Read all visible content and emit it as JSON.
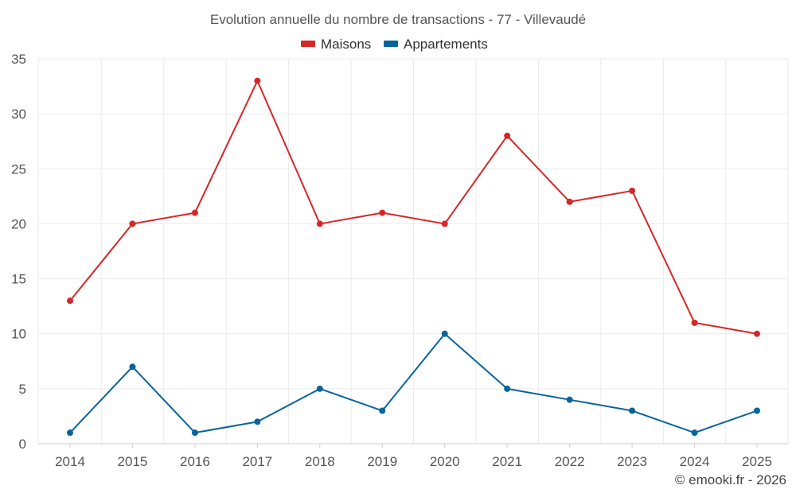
{
  "chart_data": {
    "type": "line",
    "title": "Evolution annuelle du nombre de transactions - 77 - Villevaudé",
    "categories": [
      "2014",
      "2015",
      "2016",
      "2017",
      "2018",
      "2019",
      "2020",
      "2021",
      "2022",
      "2023",
      "2024",
      "2025"
    ],
    "series": [
      {
        "name": "Maisons",
        "color": "#d62728",
        "values": [
          13,
          20,
          21,
          33,
          20,
          21,
          20,
          28,
          22,
          23,
          11,
          10
        ]
      },
      {
        "name": "Appartements",
        "color": "#08639b",
        "values": [
          1,
          7,
          1,
          2,
          5,
          3,
          10,
          5,
          4,
          3,
          1,
          3
        ]
      }
    ],
    "ylim": [
      0,
      35
    ],
    "yticks": [
      0,
      5,
      10,
      15,
      20,
      25,
      30,
      35
    ],
    "xlabel": "",
    "ylabel": "",
    "grid": true,
    "legend_position": "top-center"
  },
  "credit": "© emooki.fr - 2026"
}
